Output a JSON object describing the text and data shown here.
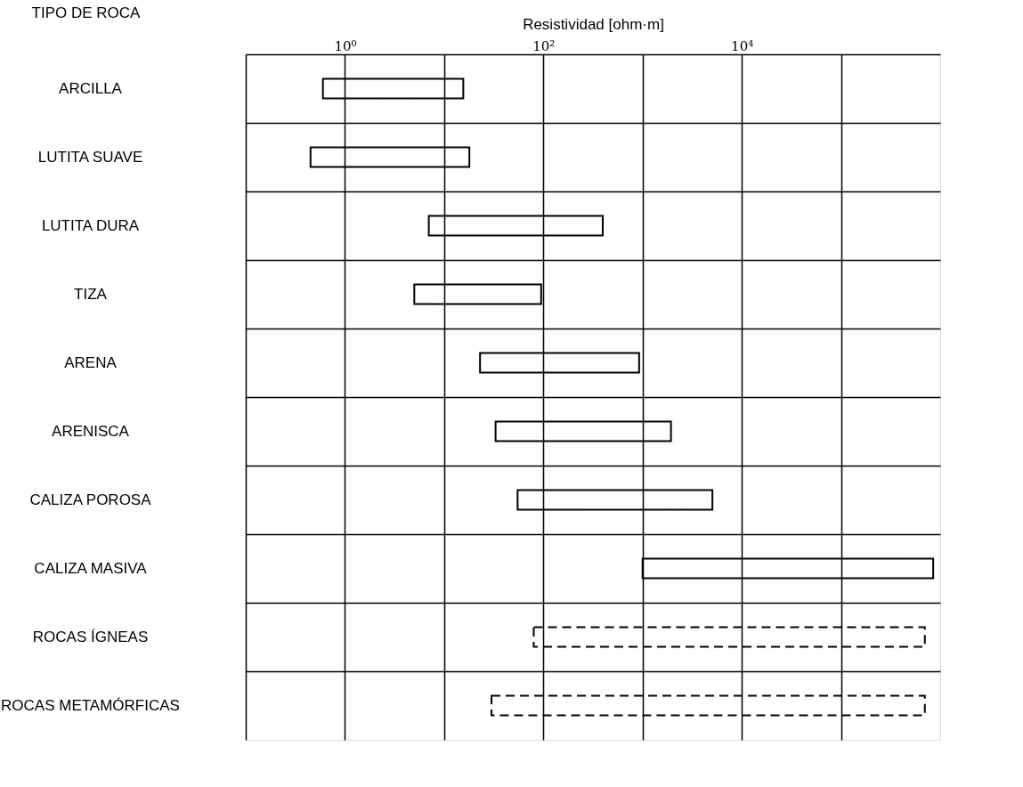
{
  "chart_data": {
    "type": "bar",
    "orientation": "horizontal",
    "log": "x",
    "xlabel": "Resistividad [ohm·m]",
    "ylabel": "TIPO DE ROCA",
    "categories": [
      "ARCILLA",
      "LUTITA SUAVE",
      "LUTITA DURA",
      "TIZA",
      "ARENA",
      "ARENISCA",
      "CALIZA POROSA",
      "CALIZA MASIVA",
      "ROCAS ÍGNEAS",
      "ROCAS METAMÓRFICAS"
    ],
    "series": [
      {
        "color": "#000000",
        "line_style": "solid",
        "base": [
          0.6,
          0.45,
          7,
          5,
          23,
          33,
          55,
          1000,
          null,
          null
        ],
        "values": [
          15,
          17.5,
          390,
          90,
          900,
          1900,
          5000,
          850000,
          null,
          null
        ]
      },
      {
        "color": "#000000",
        "line_style": "dashed",
        "base": [
          null,
          null,
          null,
          null,
          null,
          null,
          null,
          null,
          80,
          30
        ],
        "values": [
          null,
          null,
          null,
          null,
          null,
          null,
          null,
          null,
          700000,
          700000
        ]
      }
    ],
    "xlim": [
      0.1,
      1000000
    ],
    "xticks": [
      {
        "value": 0.1,
        "label": null
      },
      {
        "value": 1,
        "label": "10⁰"
      },
      {
        "value": 10,
        "label": null
      },
      {
        "value": 100,
        "label": "10²"
      },
      {
        "value": 1000,
        "label": null
      },
      {
        "value": 10000,
        "label": "10⁴"
      },
      {
        "value": 100000,
        "label": null
      }
    ],
    "grid": true
  }
}
